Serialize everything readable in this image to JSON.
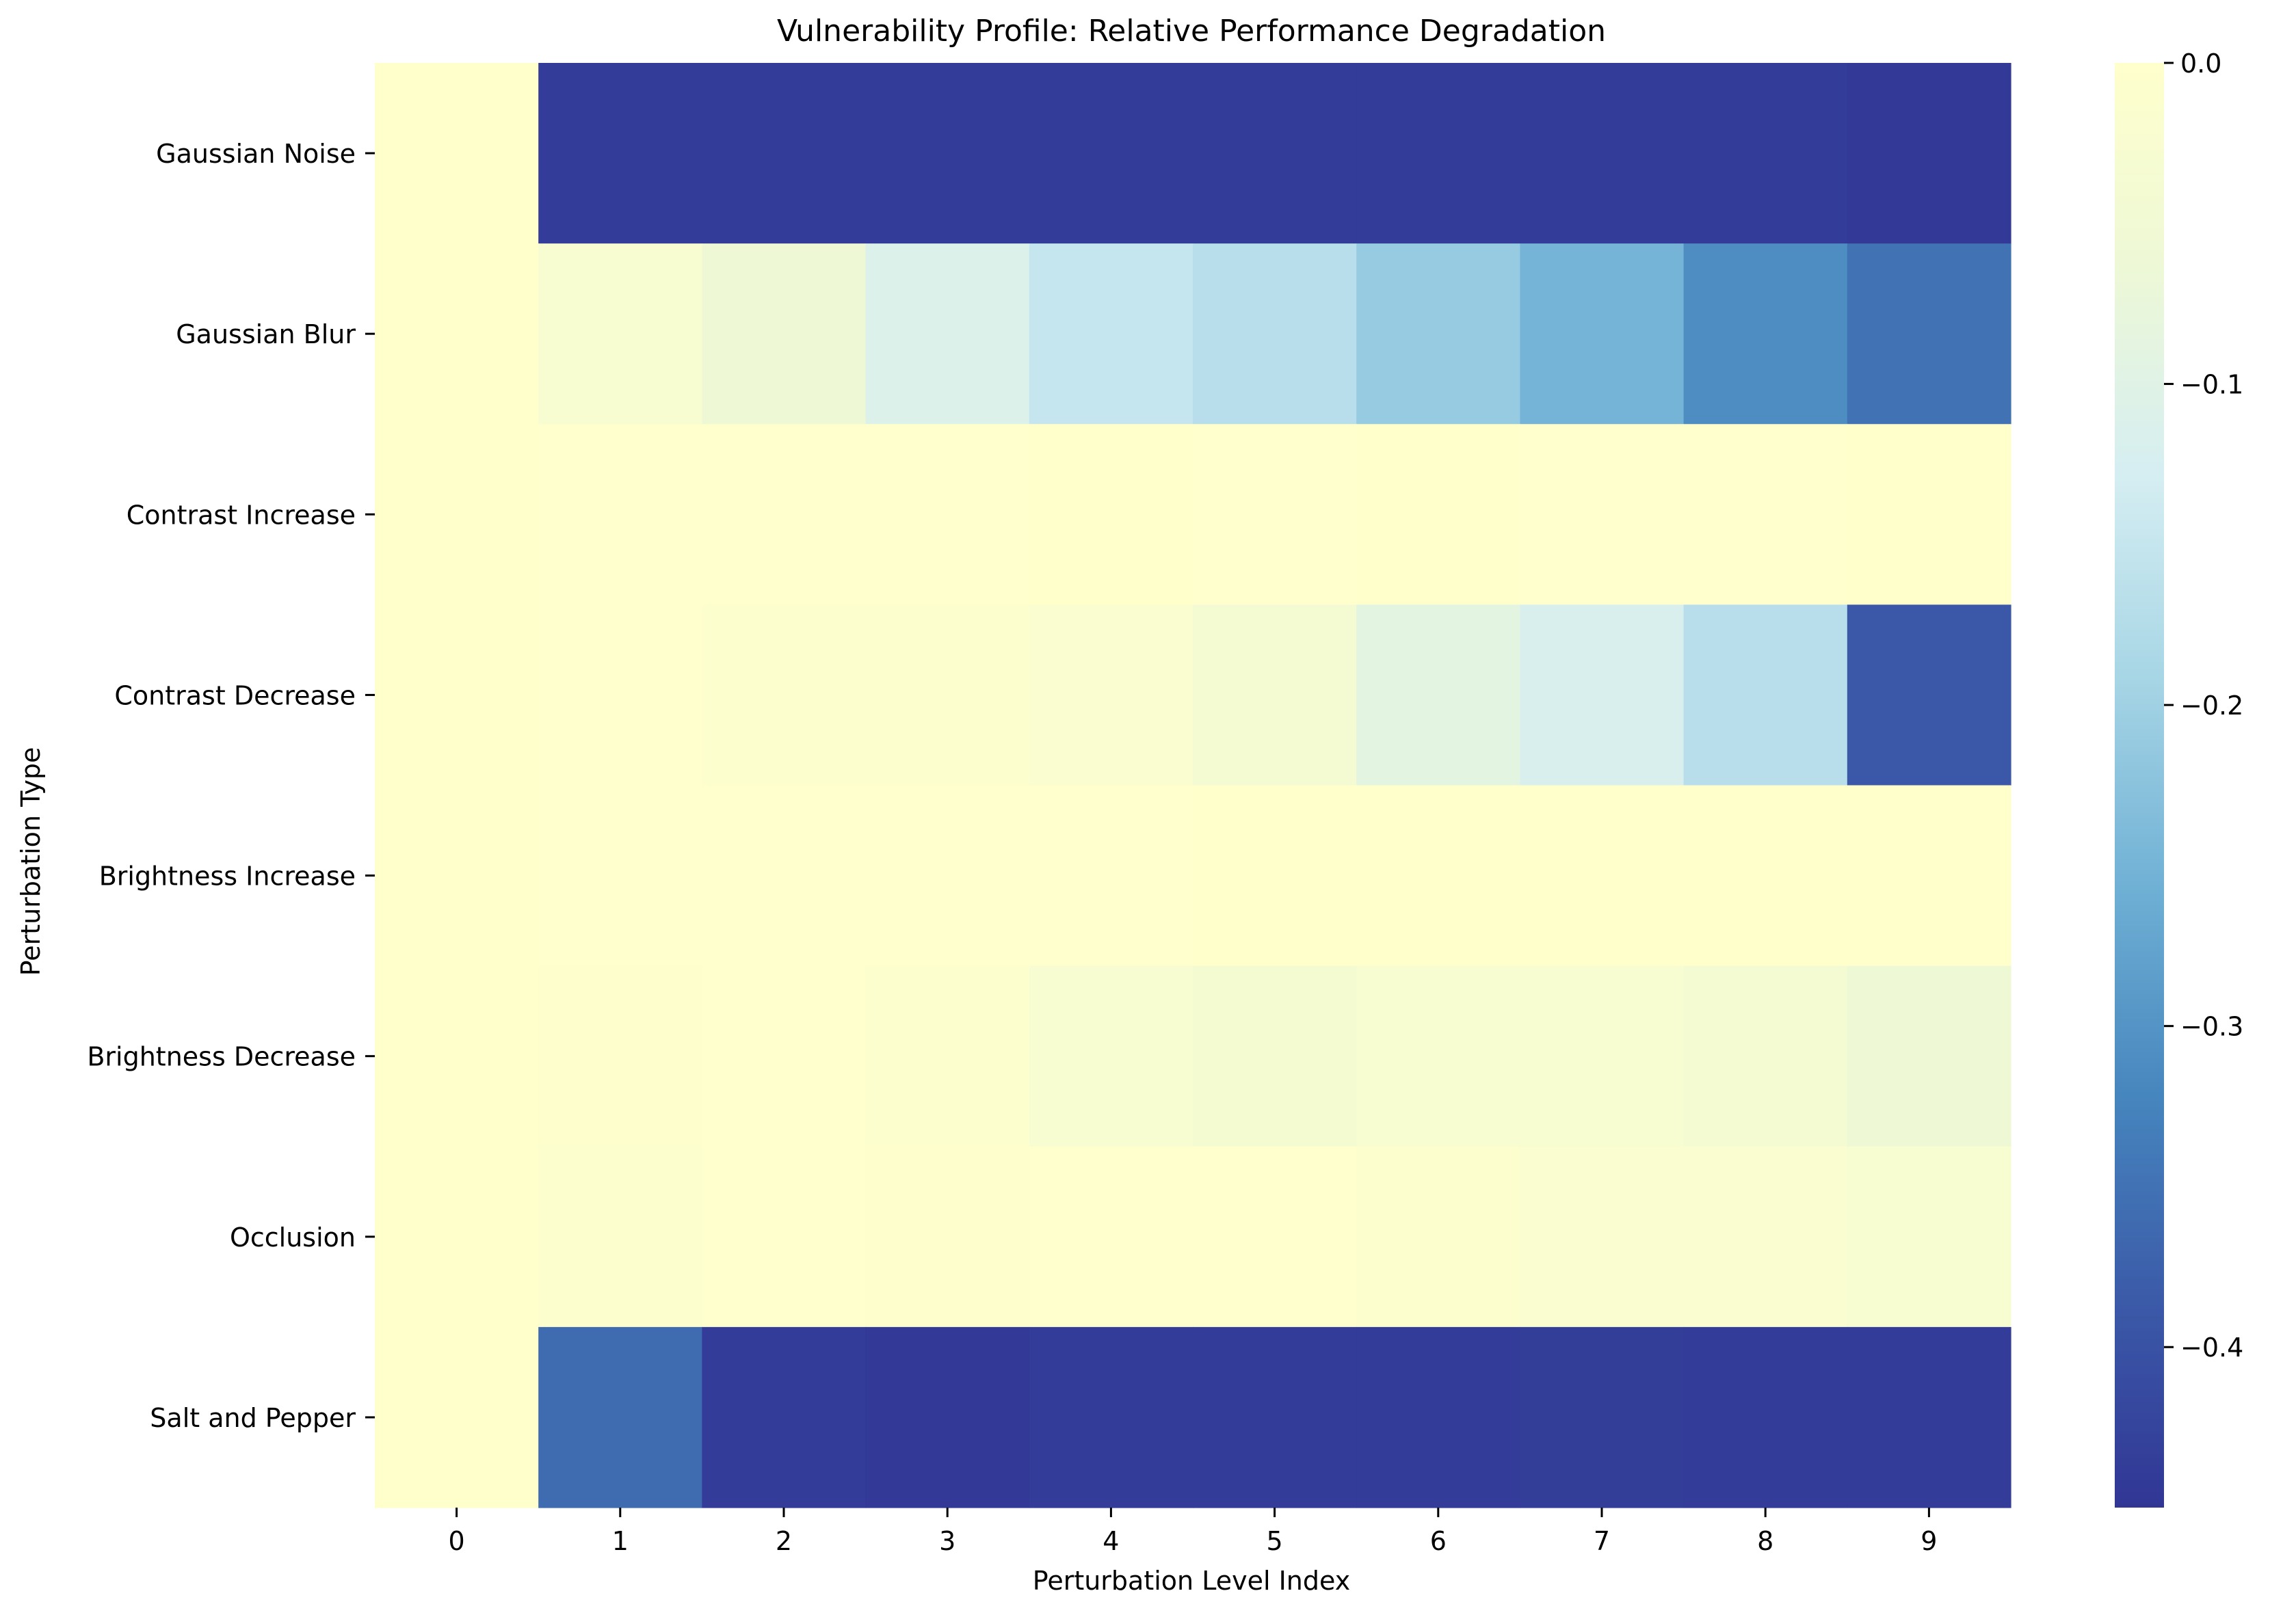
{
  "chart_data": {
    "type": "heatmap",
    "title": "Vulnerability Profile: Relative Performance Degradation",
    "xlabel": "Perturbation Level Index",
    "ylabel": "Perturbation Type",
    "x_categories": [
      "0",
      "1",
      "2",
      "3",
      "4",
      "5",
      "6",
      "7",
      "8",
      "9"
    ],
    "y_categories": [
      "Gaussian Noise",
      "Gaussian Blur",
      "Contrast Increase",
      "Contrast Decrease",
      "Brightness Increase",
      "Brightness Decrease",
      "Occlusion",
      "Salt and Pepper"
    ],
    "values": [
      [
        0.0,
        -0.44,
        -0.44,
        -0.44,
        -0.44,
        -0.44,
        -0.44,
        -0.44,
        -0.44,
        -0.445
      ],
      [
        0.0,
        -0.03,
        -0.06,
        -0.11,
        -0.15,
        -0.17,
        -0.21,
        -0.25,
        -0.31,
        -0.35
      ],
      [
        0.0,
        -0.003,
        -0.002,
        -0.003,
        -0.001,
        -0.002,
        -0.001,
        -0.002,
        -0.003,
        -0.001
      ],
      [
        0.0,
        -0.003,
        -0.006,
        -0.01,
        -0.02,
        -0.04,
        -0.09,
        -0.12,
        -0.17,
        -0.39
      ],
      [
        0.0,
        -0.002,
        -0.003,
        -0.002,
        -0.002,
        0.0,
        0.0,
        0.0,
        0.0,
        0.0
      ],
      [
        0.0,
        -0.005,
        -0.002,
        -0.01,
        -0.03,
        -0.035,
        -0.03,
        -0.03,
        -0.04,
        -0.06
      ],
      [
        0.0,
        -0.006,
        -0.004,
        -0.005,
        -0.002,
        -0.002,
        -0.006,
        -0.02,
        -0.02,
        -0.03
      ],
      [
        0.0,
        -0.36,
        -0.44,
        -0.445,
        -0.44,
        -0.44,
        -0.44,
        -0.435,
        -0.44,
        -0.44
      ]
    ],
    "colorbar": {
      "min": -0.45,
      "max": 0.0,
      "ticks": [
        0.0,
        -0.1,
        -0.2,
        -0.3,
        -0.4
      ],
      "tick_labels": [
        "0.0",
        "−0.1",
        "−0.2",
        "−0.3",
        "−0.4"
      ],
      "colormap": "RdYlBu-like (yellow→light blue→dark blue)",
      "colors": [
        "#ffffcc",
        "#edf8d6",
        "#d5eef2",
        "#a6d5e5",
        "#6fb0d5",
        "#4686be",
        "#3b5aa8",
        "#313695"
      ]
    },
    "grid": false,
    "legend": "colorbar-right"
  }
}
